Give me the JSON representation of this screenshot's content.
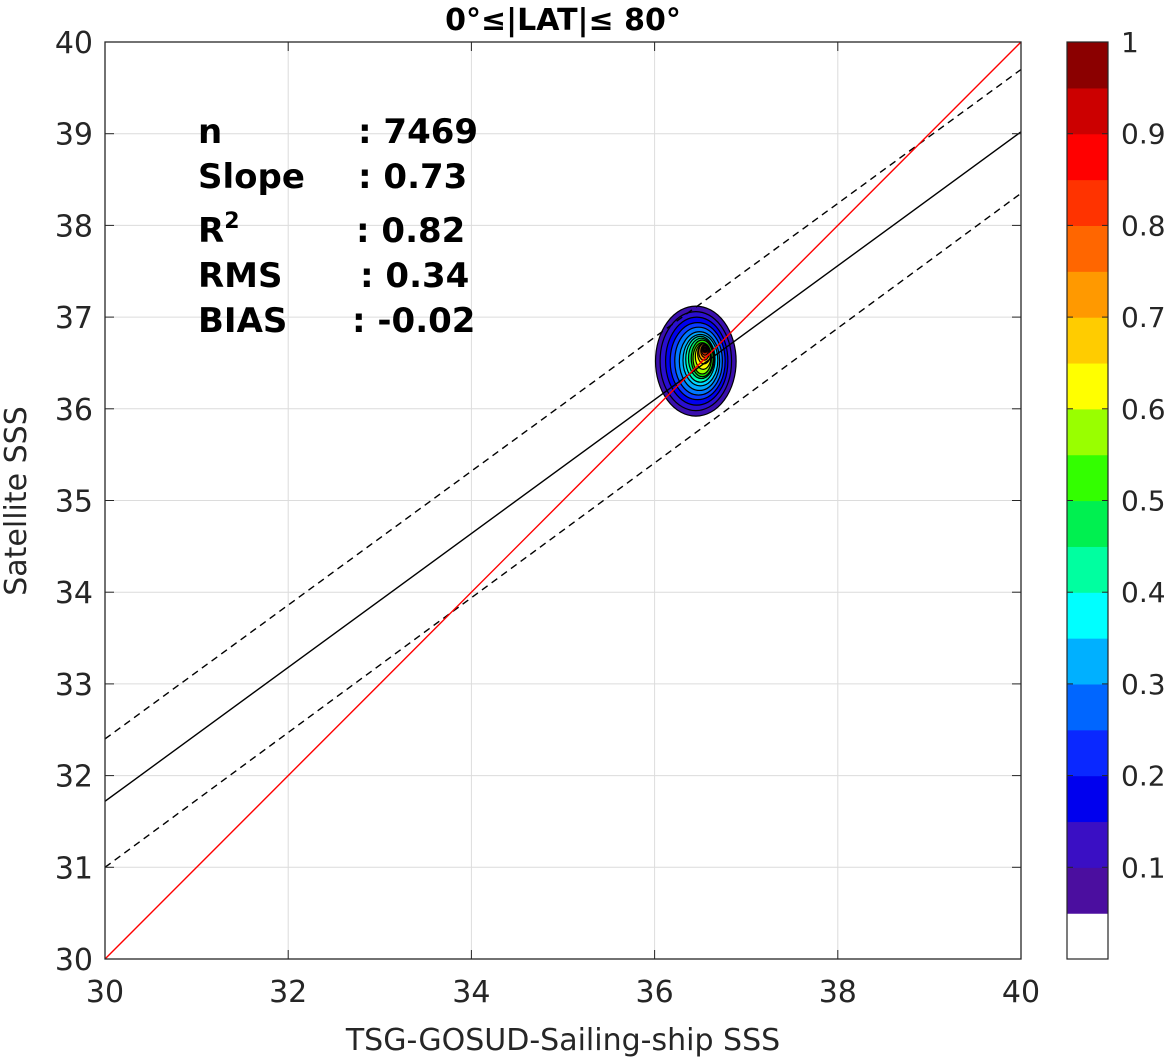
{
  "chart_data": {
    "type": "contour",
    "title": "0°≤|LAT|≤ 80°",
    "xlabel": "TSG-GOSUD-Sailing-ship SSS",
    "ylabel": "Satellite SSS",
    "xlim": [
      30,
      40
    ],
    "ylim": [
      30,
      40
    ],
    "x_ticks": [
      "30",
      "32",
      "34",
      "36",
      "38",
      "40"
    ],
    "y_ticks": [
      "30",
      "31",
      "32",
      "33",
      "34",
      "35",
      "36",
      "37",
      "38",
      "39",
      "40"
    ],
    "grid": true,
    "stats": [
      {
        "label": "n",
        "value": ": 7469"
      },
      {
        "label": "Slope",
        "value": ": 0.73"
      },
      {
        "label": "R",
        "sup": "2",
        "value": ": 0.82"
      },
      {
        "label": "RMS",
        "value": ": 0.34"
      },
      {
        "label": "BIAS",
        "value": ": -0.02"
      }
    ],
    "lines": {
      "identity": {
        "color": "#ff0000",
        "points": [
          [
            30,
            30
          ],
          [
            40,
            40
          ]
        ]
      },
      "regression": {
        "color": "#000000",
        "style": "solid",
        "points": [
          [
            30,
            31.72
          ],
          [
            40,
            39.02
          ]
        ]
      },
      "upper_bound": {
        "color": "#000000",
        "style": "dashed",
        "points": [
          [
            30,
            32.4
          ],
          [
            40,
            39.7
          ]
        ]
      },
      "lower_bound": {
        "color": "#000000",
        "style": "dashed",
        "points": [
          [
            30,
            31.0
          ],
          [
            40,
            38.35
          ]
        ]
      }
    },
    "density_contours": {
      "center": [
        36.55,
        36.62
      ],
      "peak": [
        36.55,
        36.65
      ],
      "levels": [
        {
          "level": 0.05,
          "color": "#3a0fae",
          "rx": 0.44,
          "ry": 0.6,
          "cx": 36.45,
          "cy": 36.52
        },
        {
          "level": 0.1,
          "color": "#2a0fd0",
          "rx": 0.39,
          "ry": 0.54,
          "cx": 36.45,
          "cy": 36.52
        },
        {
          "level": 0.15,
          "color": "#0000ee",
          "rx": 0.34,
          "ry": 0.48,
          "cx": 36.46,
          "cy": 36.52
        },
        {
          "level": 0.2,
          "color": "#0a3bff",
          "rx": 0.3,
          "ry": 0.42,
          "cx": 36.47,
          "cy": 36.52
        },
        {
          "level": 0.25,
          "color": "#0077ff",
          "rx": 0.26,
          "ry": 0.37,
          "cx": 36.48,
          "cy": 36.52
        },
        {
          "level": 0.3,
          "color": "#00aaff",
          "rx": 0.22,
          "ry": 0.32,
          "cx": 36.49,
          "cy": 36.52
        },
        {
          "level": 0.35,
          "color": "#00d8ff",
          "rx": 0.19,
          "ry": 0.28,
          "cx": 36.5,
          "cy": 36.53
        },
        {
          "level": 0.4,
          "color": "#00ffb0",
          "rx": 0.16,
          "ry": 0.25,
          "cx": 36.5,
          "cy": 36.54
        },
        {
          "level": 0.45,
          "color": "#00ee66",
          "rx": 0.14,
          "ry": 0.22,
          "cx": 36.51,
          "cy": 36.55
        },
        {
          "level": 0.5,
          "color": "#22e000",
          "rx": 0.12,
          "ry": 0.2,
          "cx": 36.52,
          "cy": 36.55
        },
        {
          "level": 0.55,
          "color": "#99ff00",
          "rx": 0.1,
          "ry": 0.17,
          "cx": 36.52,
          "cy": 36.55
        },
        {
          "level": 0.6,
          "color": "#ffff00",
          "rx": 0.085,
          "ry": 0.14,
          "cx": 36.53,
          "cy": 36.57
        },
        {
          "level": 0.65,
          "color": "#ffcc00",
          "rx": 0.07,
          "ry": 0.11,
          "cx": 36.54,
          "cy": 36.6
        },
        {
          "level": 0.7,
          "color": "#ff9900",
          "rx": 0.058,
          "ry": 0.09,
          "cx": 36.54,
          "cy": 36.62
        },
        {
          "level": 0.75,
          "color": "#ff6600",
          "rx": 0.046,
          "ry": 0.07,
          "cx": 36.55,
          "cy": 36.63
        },
        {
          "level": 0.8,
          "color": "#ff3300",
          "rx": 0.036,
          "ry": 0.055,
          "cx": 36.55,
          "cy": 36.64
        },
        {
          "level": 0.85,
          "color": "#ff0000",
          "rx": 0.026,
          "ry": 0.04,
          "cx": 36.55,
          "cy": 36.65
        },
        {
          "level": 0.9,
          "color": "#cc0000",
          "rx": 0.017,
          "ry": 0.026,
          "cx": 36.55,
          "cy": 36.65
        },
        {
          "level": 0.95,
          "color": "#8b0000",
          "rx": 0.009,
          "ry": 0.014,
          "cx": 36.55,
          "cy": 36.65
        }
      ]
    },
    "colorbar": {
      "colors": [
        "#ffffff",
        "#4b0e9f",
        "#3a0fc4",
        "#0000ee",
        "#0a28ff",
        "#0066ff",
        "#00b0ff",
        "#00ffff",
        "#00ffa0",
        "#00f050",
        "#33ff00",
        "#99ff00",
        "#ffff00",
        "#ffcc00",
        "#ff9900",
        "#ff6600",
        "#ff3300",
        "#ff0000",
        "#cc0000",
        "#8b0000"
      ],
      "ticks": [
        "0.1",
        "0.2",
        "0.3",
        "0.4",
        "0.5",
        "0.6",
        "0.7",
        "0.8",
        "0.9",
        "1"
      ],
      "tick_values": [
        0.1,
        0.2,
        0.3,
        0.4,
        0.5,
        0.6,
        0.7,
        0.8,
        0.9,
        1.0
      ]
    }
  }
}
